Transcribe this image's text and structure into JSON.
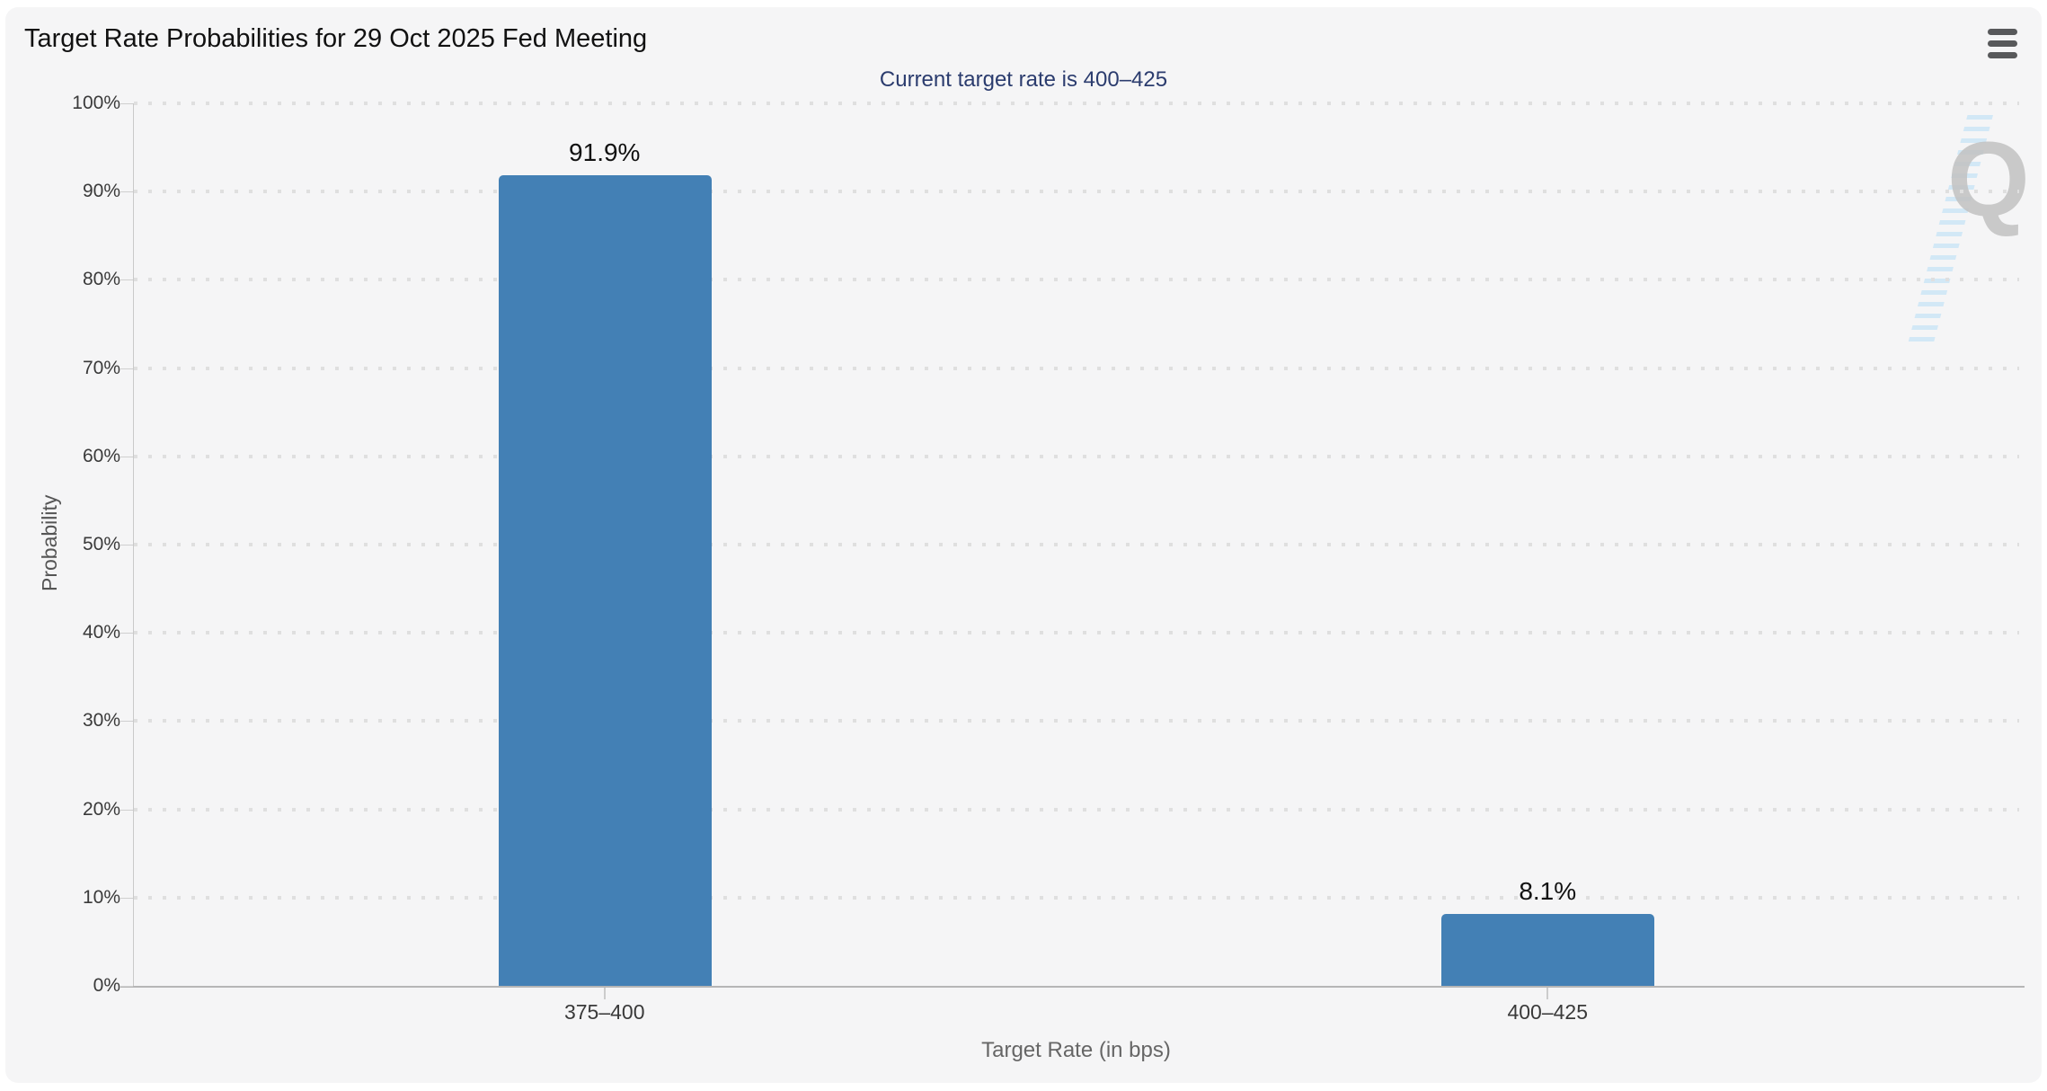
{
  "page": {
    "watermark_letter": "Q",
    "menu_icon": "hamburger-menu"
  },
  "chart_data": {
    "type": "bar",
    "title": "Target Rate Probabilities for 29 Oct 2025 Fed Meeting",
    "subtitle": "Current target rate is 400–425",
    "categories": [
      "375–400",
      "400–425"
    ],
    "values": [
      91.9,
      8.1
    ],
    "value_labels": [
      "91.9%",
      "8.1%"
    ],
    "xlabel": "Target Rate (in bps)",
    "ylabel": "Probability",
    "ylim": [
      0,
      100
    ],
    "ytick_step": 10,
    "ytick_labels": [
      "0%",
      "10%",
      "20%",
      "30%",
      "40%",
      "50%",
      "60%",
      "70%",
      "80%",
      "90%",
      "100%"
    ],
    "grid": "dotted-horizontal",
    "legend": "none",
    "bar_color": "#4380b5",
    "subtitle_color": "#2b3c6e"
  }
}
